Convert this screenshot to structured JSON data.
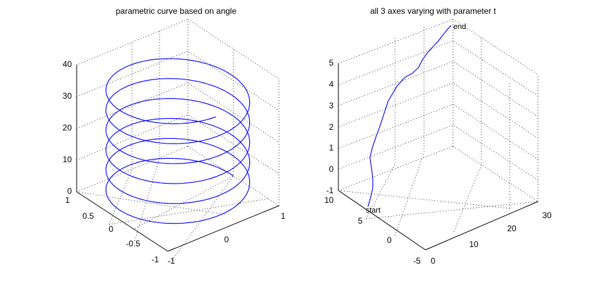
{
  "colors": {
    "curve": "#0000ff",
    "axes": "#000000",
    "background": "#ffffff"
  },
  "chart_data": [
    {
      "type": "line3d",
      "title": "parametric curve based on angle",
      "grid": true,
      "x_ticks": [
        "-1",
        "0",
        "1"
      ],
      "y_ticks": [
        "-1",
        "-0.5",
        "0",
        "0.5",
        "1"
      ],
      "z_ticks": [
        "0",
        "10",
        "20",
        "30",
        "40"
      ],
      "xlim": [
        -1,
        1
      ],
      "ylim": [
        -1,
        1
      ],
      "zlim": [
        0,
        40
      ],
      "series": [
        {
          "curve": "helix",
          "x": "cos(t)",
          "y": "sin(t)",
          "z": "t",
          "t_range": [
            0,
            36
          ]
        }
      ]
    },
    {
      "type": "line3d",
      "title": "all 3 axes varying with parameter t",
      "grid": true,
      "x_ticks": [
        "0",
        "10",
        "20",
        "30"
      ],
      "y_ticks": [
        "-5",
        "0",
        "5",
        "10"
      ],
      "z_ticks": [
        "-1",
        "0",
        "1",
        "2",
        "3",
        "4",
        "5"
      ],
      "xlim": [
        0,
        30
      ],
      "ylim": [
        -5,
        10
      ],
      "zlim": [
        -1,
        5
      ],
      "annotations": [
        {
          "text": "start",
          "x": 2.5,
          "y": 6.2,
          "z": -1.2
        },
        {
          "text": "end",
          "x": 27.5,
          "y": 8.2,
          "z": 5.0
        }
      ],
      "series": [
        {
          "x": [
            2,
            3,
            3.9,
            4.4,
            4.6,
            4.7,
            5.3,
            6.4,
            7.5,
            8.6,
            10,
            12.5,
            15,
            17,
            18.7,
            19.8,
            21,
            22.6,
            24,
            25.3,
            26.3,
            27.6
          ],
          "y": [
            6.2,
            6.4,
            6.6,
            6.9,
            7.3,
            7.6,
            7.6,
            7.7,
            7.7,
            7.8,
            7.9,
            8.0,
            8.2,
            8.3,
            8.3,
            8.3,
            8.3,
            8.4,
            8.4,
            8.4,
            8.3,
            8.4
          ],
          "z": [
            -1.2,
            -0.9,
            -0.55,
            -0.2,
            0.25,
            0.65,
            1.05,
            1.45,
            1.9,
            2.3,
            2.85,
            3.35,
            3.55,
            3.55,
            3.7,
            4.0,
            4.2,
            4.35,
            4.5,
            4.7,
            4.9,
            5.0
          ]
        }
      ]
    }
  ]
}
